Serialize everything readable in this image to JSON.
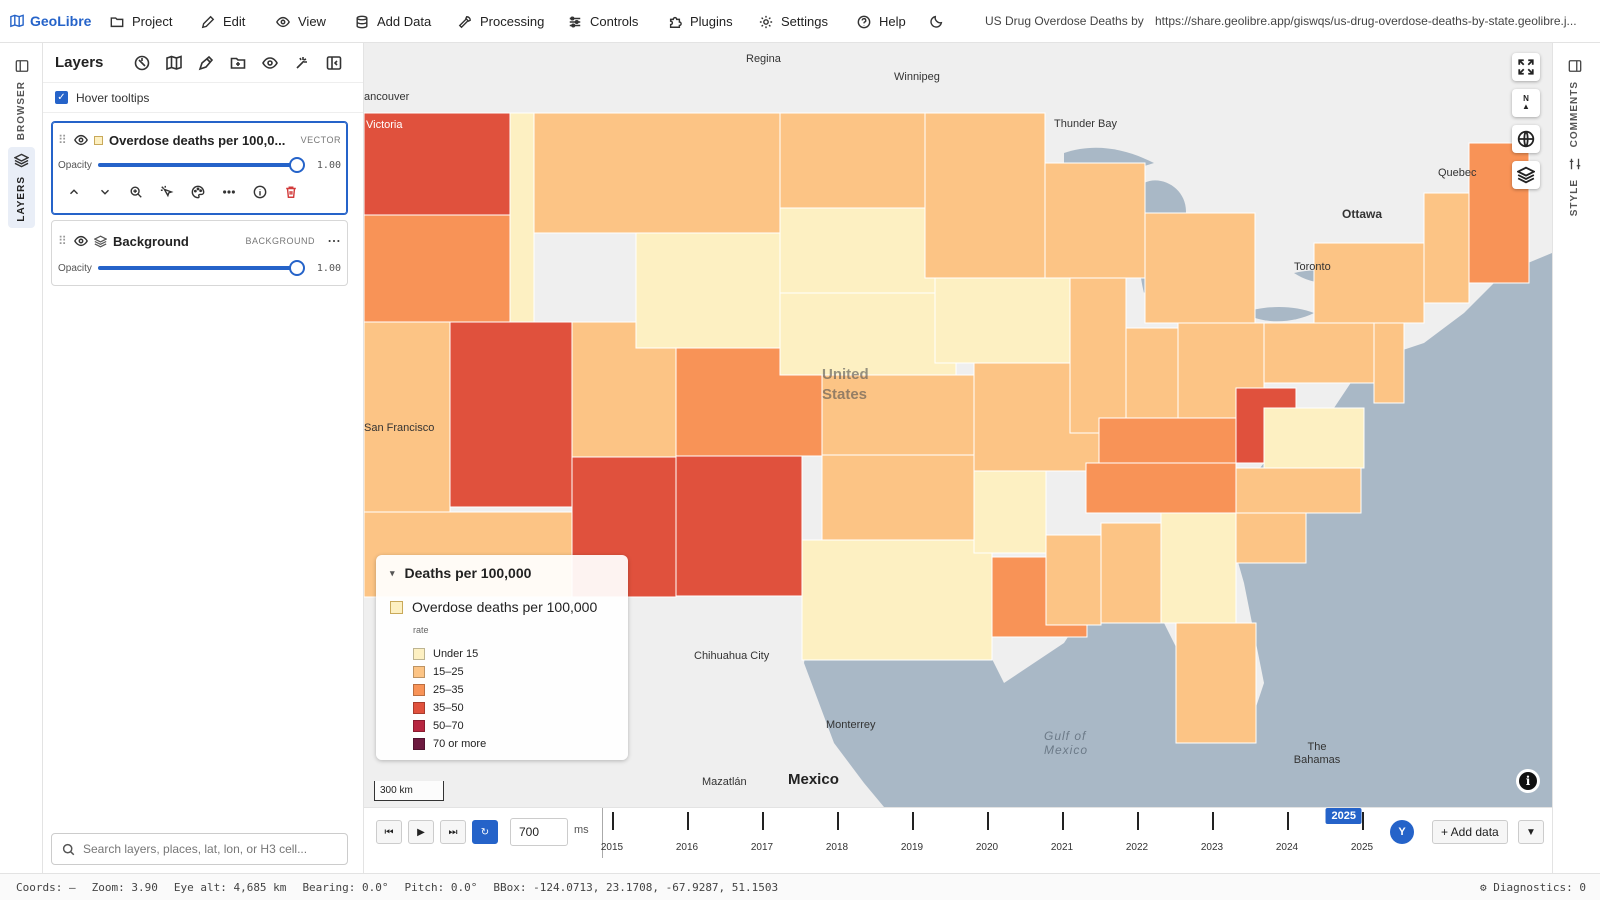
{
  "app": {
    "name": "GeoLibre",
    "map_title": "US Drug Overdose Deaths by",
    "share_url": "https://share.geolibre.app/giswqs/us-drug-overdose-deaths-by-state.geolibre.j..."
  },
  "menu": [
    {
      "label": "Project",
      "icon": "folder-icon"
    },
    {
      "label": "Edit",
      "icon": "pencil-icon"
    },
    {
      "label": "View",
      "icon": "eye-icon"
    },
    {
      "label": "Add Data",
      "icon": "database-icon"
    },
    {
      "label": "Processing",
      "icon": "wrench-icon"
    },
    {
      "label": "Controls",
      "icon": "sliders-icon"
    },
    {
      "label": "Plugins",
      "icon": "puzzle-icon"
    },
    {
      "label": "Settings",
      "icon": "gear-icon"
    },
    {
      "label": "Help",
      "icon": "help-icon"
    }
  ],
  "left_rail": {
    "browser": "BROWSER",
    "layers": "LAYERS"
  },
  "right_rail": {
    "comments": "COMMENTS",
    "style": "STYLE"
  },
  "layers_panel": {
    "title": "Layers",
    "hover_tooltips": "Hover tooltips",
    "layers": [
      {
        "name": "Overdose deaths per 100,0...",
        "type": "VECTOR",
        "opacity_label": "Opacity",
        "opacity": "1.00"
      },
      {
        "name": "Background",
        "type": "BACKGROUND",
        "opacity_label": "Opacity",
        "opacity": "1.00"
      }
    ],
    "search_placeholder": "Search layers, places, lat, lon, or H3 cell..."
  },
  "map_labels": {
    "regina": "Regina",
    "winnipeg": "Winnipeg",
    "vancouver": "ancouver",
    "victoria": "Victoria",
    "thunder_bay": "Thunder Bay",
    "quebec": "Quebec",
    "ottawa": "Ottawa",
    "toronto": "Toronto",
    "united_states": "United States",
    "san_francisco": "San Francisco",
    "chihuahua": "Chihuahua City",
    "monterrey": "Monterrey",
    "mexico": "Mexico",
    "mazatlan": "Mazatlán",
    "gulf": "Gulf of Mexico",
    "bahamas": "The Bahamas"
  },
  "legend": {
    "title": "Deaths per 100,000",
    "layer": "Overdose deaths per 100,000",
    "field": "rate",
    "classes": [
      {
        "label": "Under 15",
        "color": "#fdf0c2"
      },
      {
        "label": "15–25",
        "color": "#fcc485"
      },
      {
        "label": "25–35",
        "color": "#f89357"
      },
      {
        "label": "35–50",
        "color": "#e0513d"
      },
      {
        "label": "50–70",
        "color": "#b72640"
      },
      {
        "label": "70 or more",
        "color": "#6d1a3f"
      }
    ],
    "scale": "300 km"
  },
  "map_controls": {
    "north": "N"
  },
  "timeline": {
    "interval": "700",
    "unit": "ms",
    "years": [
      "2015",
      "2016",
      "2017",
      "2018",
      "2019",
      "2020",
      "2021",
      "2022",
      "2023",
      "2024",
      "2025"
    ],
    "current": "2025",
    "avatar": "Y",
    "add_data": "+ Add data"
  },
  "status": {
    "coords": "Coords: —",
    "zoom": "Zoom: 3.90",
    "eye_alt": "Eye alt: 4,685 km",
    "bearing": "Bearing: 0.0°",
    "pitch": "Pitch: 0.0°",
    "bbox": "BBox: -124.0713, 23.1708, -67.9287, 51.1503",
    "diagnostics": "⚙ Diagnostics: 0"
  }
}
